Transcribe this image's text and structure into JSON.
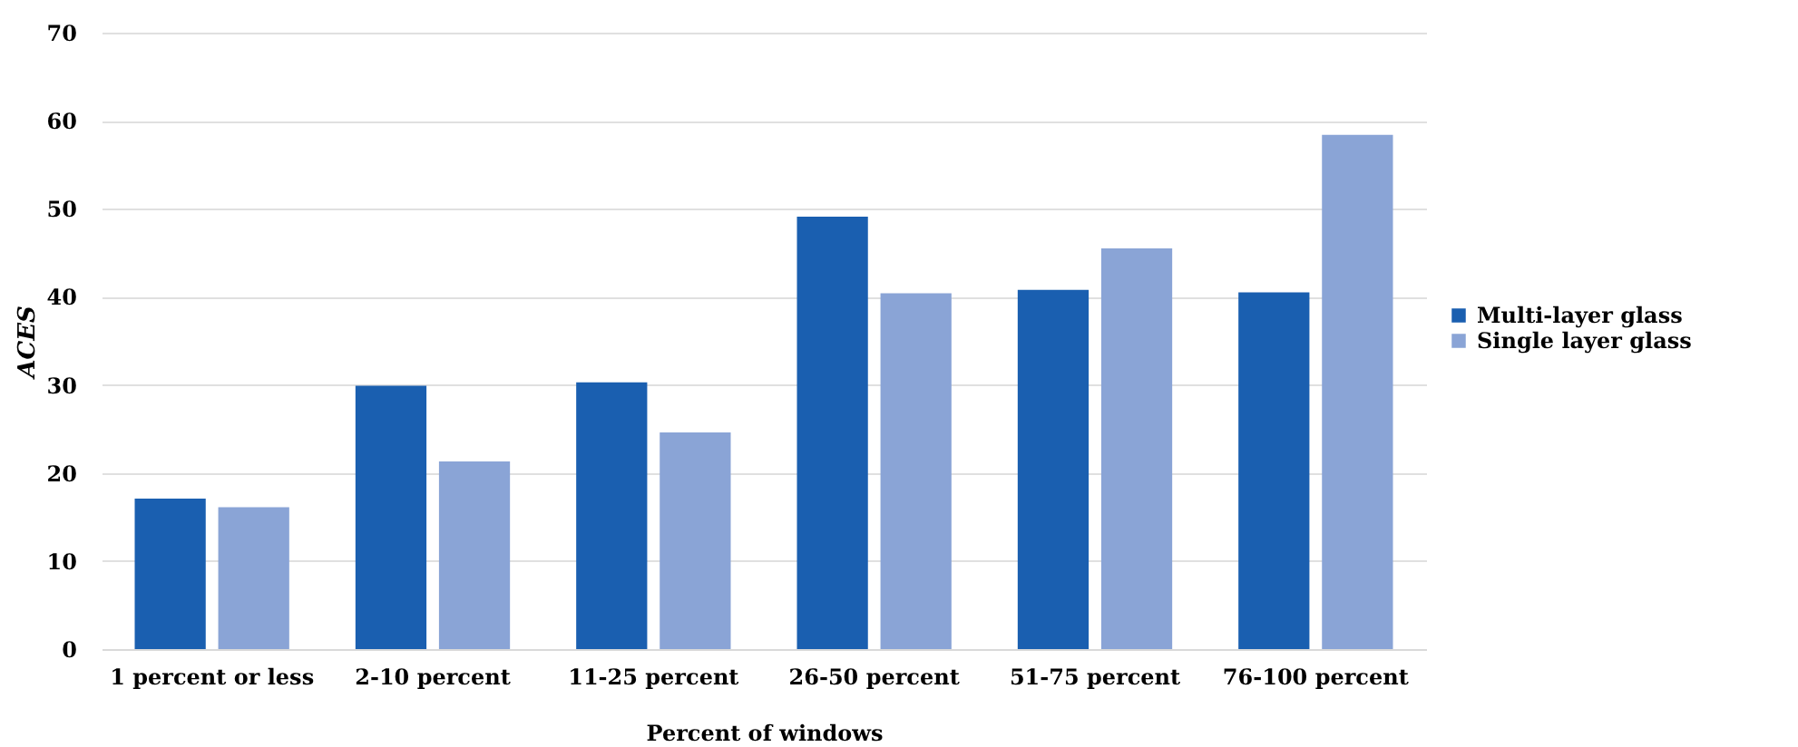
{
  "chart_data": {
    "type": "bar",
    "xlabel": "Percent of windows",
    "ylabel": "ACES",
    "categories": [
      "1 percent or less",
      "2-10 percent",
      "11-25 percent",
      "26-50 percent",
      "51-75 percent",
      "76-100 percent"
    ],
    "series": [
      {
        "name": "Multi-layer glass",
        "color": "#1a5fb0",
        "values": [
          17.1,
          29.9,
          30.3,
          49.1,
          40.8,
          40.5
        ]
      },
      {
        "name": "Single layer glass",
        "color": "#8aa4d6",
        "values": [
          16.1,
          21.3,
          24.6,
          40.4,
          45.5,
          58.4
        ]
      }
    ],
    "ylim": [
      0,
      70
    ],
    "yticks": [
      0,
      10,
      20,
      30,
      40,
      50,
      60,
      70
    ],
    "grid": "y",
    "legend": "right"
  }
}
